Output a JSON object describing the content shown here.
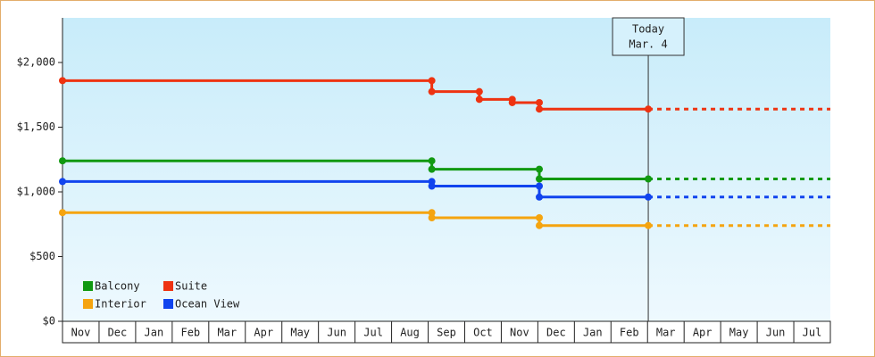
{
  "chart_data": {
    "type": "step",
    "series": [
      {
        "name": "Balcony",
        "color": "#119911",
        "x": [
          0,
          10.1,
          13.04
        ],
        "values": [
          1240,
          1175,
          1100
        ]
      },
      {
        "name": "Suite",
        "color": "#ee3311",
        "x": [
          0,
          10.1,
          11.4,
          12.3,
          13.04
        ],
        "values": [
          1860,
          1775,
          1715,
          1690,
          1640
        ]
      },
      {
        "name": "Interior",
        "color": "#f5a40f",
        "x": [
          0,
          10.1,
          13.04
        ],
        "values": [
          840,
          800,
          740
        ]
      },
      {
        "name": "Ocean View",
        "color": "#1144ee",
        "x": [
          0,
          10.1,
          13.04
        ],
        "values": [
          1080,
          1045,
          960
        ]
      }
    ],
    "today": {
      "x": 16.02,
      "label": "Today",
      "date": "Mar. 4"
    },
    "xlim": [
      0,
      21
    ],
    "xticks": [
      {
        "value": 0.5,
        "label": "Nov"
      },
      {
        "value": 1.5,
        "label": "Dec"
      },
      {
        "value": 2.5,
        "label": "Jan"
      },
      {
        "value": 3.5,
        "label": "Feb"
      },
      {
        "value": 4.5,
        "label": "Mar"
      },
      {
        "value": 5.5,
        "label": "Apr"
      },
      {
        "value": 6.5,
        "label": "May"
      },
      {
        "value": 7.5,
        "label": "Jun"
      },
      {
        "value": 8.5,
        "label": "Jul"
      },
      {
        "value": 9.5,
        "label": "Aug"
      },
      {
        "value": 10.5,
        "label": "Sep"
      },
      {
        "value": 11.5,
        "label": "Oct"
      },
      {
        "value": 12.5,
        "label": "Nov"
      },
      {
        "value": 13.5,
        "label": "Dec"
      },
      {
        "value": 14.5,
        "label": "Jan"
      },
      {
        "value": 15.5,
        "label": "Feb"
      },
      {
        "value": 16.5,
        "label": "Mar"
      },
      {
        "value": 17.5,
        "label": "Apr"
      },
      {
        "value": 18.5,
        "label": "May"
      },
      {
        "value": 19.5,
        "label": "Jun"
      },
      {
        "value": 20.5,
        "label": "Jul"
      }
    ],
    "ylim": [
      0,
      2345
    ],
    "yticks": [
      {
        "value": 0,
        "label": "$0"
      },
      {
        "value": 500,
        "label": "$500"
      },
      {
        "value": 1000,
        "label": "$1,000"
      },
      {
        "value": 1500,
        "label": "$1,500"
      },
      {
        "value": 2000,
        "label": "$2,000"
      }
    ],
    "grid": false,
    "legend": "lower-left"
  }
}
